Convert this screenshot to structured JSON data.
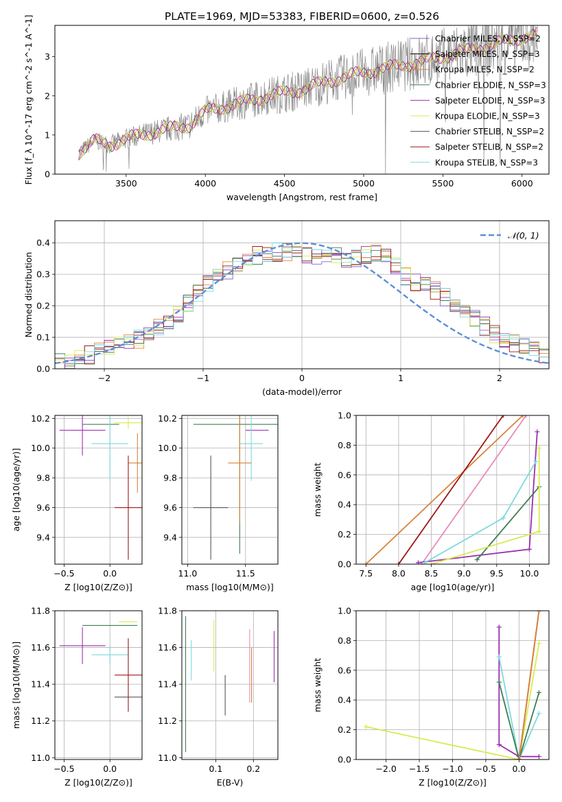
{
  "title": "PLATE=1969, MJD=53383, FIBERID=0600, z=0.526",
  "colors": {
    "chabrier_miles": "#8c62c9",
    "salpeter_miles": "#000000",
    "kroupa_miles": "#e8823a",
    "chabrier_elodie": "#3d7d52",
    "salpeter_elodie": "#9b2fb0",
    "kroupa_elodie": "#d9ea4c",
    "chabrier_stelib": "#555555",
    "salpeter_stelib": "#a01515",
    "kroupa_stelib": "#7dd9e0",
    "data": "#888888",
    "gauss": "#5a8fd6",
    "pink": "#e88ab8",
    "orange": "#d8843a"
  },
  "chart_data": [
    {
      "id": "spectrum",
      "type": "line",
      "xlabel": "wavelength [Angstrom, rest frame]",
      "ylabel": "Flux [f_λ 10^-17 erg cm^-2 s^-1 A^-1]",
      "xlim": [
        3050,
        6170
      ],
      "ylim": [
        0,
        3.8
      ],
      "xticks": [
        "3500",
        "4000",
        "4500",
        "5000",
        "5500",
        "6000"
      ],
      "yticks": [
        "0",
        "1",
        "2",
        "3"
      ],
      "grid": false,
      "legend_position": "right",
      "legend": [
        "Chabrier MILES, N_SSP=2",
        "Salpeter MILES, N_SSP=3",
        "Kroupa MILES, N_SSP=2",
        "Chabrier ELODIE, N_SSP=3",
        "Salpeter ELODIE, N_SSP=3",
        "Kroupa ELODIE, N_SSP=3",
        "Chabrier STELIB, N_SSP=2",
        "Salpeter STELIB, N_SSP=2",
        "Kroupa STELIB, N_SSP=3"
      ],
      "model_continuum": [
        [
          3200,
          0.55
        ],
        [
          3300,
          0.85
        ],
        [
          3400,
          0.75
        ],
        [
          3500,
          0.9
        ],
        [
          3700,
          1.1
        ],
        [
          3900,
          1.25
        ],
        [
          4000,
          1.6
        ],
        [
          4200,
          1.8
        ],
        [
          4400,
          2.0
        ],
        [
          4600,
          2.15
        ],
        [
          4800,
          2.4
        ],
        [
          5000,
          2.6
        ],
        [
          5200,
          2.75
        ],
        [
          5400,
          2.9
        ],
        [
          5600,
          3.1
        ],
        [
          5800,
          3.3
        ],
        [
          6000,
          3.5
        ],
        [
          6100,
          3.55
        ]
      ]
    },
    {
      "id": "residuals",
      "type": "line",
      "xlabel": "(data-model)/error",
      "ylabel": "Normed distribution",
      "xlim": [
        -2.5,
        2.5
      ],
      "ylim": [
        0,
        0.47
      ],
      "xticks": [
        "−2",
        "−1",
        "0",
        "1",
        "2"
      ],
      "yticks": [
        "0.0",
        "0.1",
        "0.2",
        "0.3",
        "0.4"
      ],
      "grid": true,
      "legend_position": "top-right",
      "legend": [
        "𝒩(0, 1)"
      ],
      "histogram_envelope": [
        [
          -2.5,
          0.02
        ],
        [
          -2.2,
          0.04
        ],
        [
          -1.9,
          0.07
        ],
        [
          -1.6,
          0.1
        ],
        [
          -1.3,
          0.16
        ],
        [
          -1.0,
          0.26
        ],
        [
          -0.7,
          0.32
        ],
        [
          -0.4,
          0.37
        ],
        [
          -0.1,
          0.37
        ],
        [
          0.2,
          0.36
        ],
        [
          0.5,
          0.35
        ],
        [
          0.8,
          0.37
        ],
        [
          1.1,
          0.28
        ],
        [
          1.4,
          0.24
        ],
        [
          1.7,
          0.17
        ],
        [
          2.0,
          0.1
        ],
        [
          2.3,
          0.06
        ],
        [
          2.5,
          0.04
        ]
      ]
    },
    {
      "id": "age_vs_Z",
      "type": "scatter",
      "xlabel": "Z [log10(Z/Z⊙)]",
      "ylabel": "age  [log10(age/yr)]",
      "xlim": [
        -0.6,
        0.35
      ],
      "ylim": [
        9.22,
        10.22
      ],
      "xticks": [
        "−0.5",
        "0.0"
      ],
      "yticks": [
        "9.4",
        "9.6",
        "9.8",
        "10.0",
        "10.2"
      ],
      "grid": true,
      "points": [
        {
          "x": -0.3,
          "y": 10.12,
          "xerr": 0.25,
          "yerr": 0.17,
          "color": "salpeter_elodie"
        },
        {
          "x": -0.1,
          "y": 10.16,
          "xerr": 0.2,
          "yerr": 0.0,
          "color": "chabrier_elodie"
        },
        {
          "x": 0.2,
          "y": 10.17,
          "xerr": 0.15,
          "yerr": 0.04,
          "color": "kroupa_elodie"
        },
        {
          "x": 0.0,
          "y": 10.03,
          "xerr": 0.2,
          "yerr": 0.25,
          "color": "kroupa_stelib"
        },
        {
          "x": 0.3,
          "y": 9.9,
          "xerr": 0.1,
          "yerr": 0.2,
          "color": "orange"
        },
        {
          "x": 0.2,
          "y": 9.6,
          "xerr": 0.15,
          "yerr": 0.35,
          "color": "salpeter_stelib"
        }
      ]
    },
    {
      "id": "age_vs_mass",
      "type": "scatter",
      "xlabel": "mass [log10(M/M⊙)]",
      "ylabel": "",
      "xlim": [
        10.95,
        11.78
      ],
      "ylim": [
        9.22,
        10.22
      ],
      "xticks": [
        "11.0",
        "11.5"
      ],
      "yticks": [
        "9.4",
        "9.6",
        "9.8",
        "10.0",
        "10.2"
      ],
      "grid": true,
      "points": [
        {
          "x": 11.45,
          "y": 10.16,
          "xerr": 0.4,
          "yerr": 0.87,
          "color": "chabrier_elodie"
        },
        {
          "x": 11.6,
          "y": 10.12,
          "xerr": 0.1,
          "yerr": 0.0,
          "color": "salpeter_elodie"
        },
        {
          "x": 11.55,
          "y": 10.03,
          "xerr": 0.1,
          "yerr": 0.25,
          "color": "kroupa_stelib"
        },
        {
          "x": 11.45,
          "y": 9.9,
          "xerr": 0.1,
          "yerr": 0.4,
          "color": "orange"
        },
        {
          "x": 11.2,
          "y": 9.6,
          "xerr": 0.15,
          "yerr": 0.35,
          "color": "chabrier_stelib"
        }
      ]
    },
    {
      "id": "weight_vs_age",
      "type": "line",
      "xlabel": "age  [log10(age/yr)]",
      "ylabel": "mass weight",
      "xlim": [
        7.35,
        10.3
      ],
      "ylim": [
        0,
        1.0
      ],
      "xticks": [
        "7.5",
        "8.0",
        "8.5",
        "9.0",
        "9.5",
        "10.0"
      ],
      "yticks": [
        "0.0",
        "0.2",
        "0.4",
        "0.6",
        "0.8",
        "1.0"
      ],
      "grid": true,
      "series": [
        {
          "color": "orange",
          "x": [
            7.5,
            9.9
          ],
          "y": [
            0.0,
            1.0
          ]
        },
        {
          "color": "salpeter_stelib",
          "x": [
            8.0,
            9.6
          ],
          "y": [
            0.0,
            1.0
          ]
        },
        {
          "color": "pink",
          "x": [
            8.35,
            9.95
          ],
          "y": [
            0.0,
            1.0
          ]
        },
        {
          "color": "salpeter_elodie",
          "x": [
            8.3,
            10.0,
            10.12
          ],
          "y": [
            0.01,
            0.1,
            0.89
          ]
        },
        {
          "color": "kroupa_stelib",
          "x": [
            8.4,
            9.6,
            10.1
          ],
          "y": [
            0.01,
            0.31,
            0.69
          ]
        },
        {
          "color": "chabrier_elodie",
          "x": [
            9.2,
            10.15
          ],
          "y": [
            0.03,
            0.52
          ]
        },
        {
          "color": "kroupa_elodie",
          "x": [
            8.5,
            10.15,
            10.15
          ],
          "y": [
            0.0,
            0.22,
            0.78
          ]
        }
      ]
    },
    {
      "id": "mass_vs_Z",
      "type": "scatter",
      "xlabel": "Z [log10(Z/Z⊙)]",
      "ylabel": "mass [log10(M/M⊙)]",
      "xlim": [
        -0.6,
        0.35
      ],
      "ylim": [
        10.99,
        11.8
      ],
      "xticks": [
        "−0.5",
        "0.0"
      ],
      "yticks": [
        "11.0",
        "11.2",
        "11.4",
        "11.6",
        "11.8"
      ],
      "grid": true,
      "points": [
        {
          "x": -0.3,
          "y": 11.61,
          "xerr": 0.25,
          "yerr": 0.1,
          "color": "salpeter_elodie"
        },
        {
          "x": 0.0,
          "y": 11.72,
          "xerr": 0.3,
          "yerr": 0.0,
          "color": "chabrier_elodie"
        },
        {
          "x": 0.2,
          "y": 11.74,
          "xerr": 0.1,
          "yerr": 0.0,
          "color": "kroupa_elodie"
        },
        {
          "x": 0.0,
          "y": 11.56,
          "xerr": 0.2,
          "yerr": 0.05,
          "color": "kroupa_stelib"
        },
        {
          "x": 0.2,
          "y": 11.45,
          "xerr": 0.15,
          "yerr": 0.2,
          "color": "salpeter_stelib"
        },
        {
          "x": 0.2,
          "y": 11.33,
          "xerr": 0.15,
          "yerr": 0.0,
          "color": "chabrier_stelib"
        }
      ]
    },
    {
      "id": "mass_vs_ebv",
      "type": "scatter",
      "xlabel": "E(B-V)",
      "ylabel": "",
      "xlim": [
        0.01,
        0.265
      ],
      "ylim": [
        10.99,
        11.8
      ],
      "xticks": [
        "0.1",
        "0.2"
      ],
      "yticks": [
        "11.0",
        "11.2",
        "11.4",
        "11.6",
        "11.8"
      ],
      "grid": true,
      "points": [
        {
          "x": 0.02,
          "y": 11.4,
          "xerr": 0,
          "yerr": 0.37,
          "color": "chabrier_elodie"
        },
        {
          "x": 0.035,
          "y": 11.53,
          "xerr": 0,
          "yerr": 0.11,
          "color": "kroupa_stelib"
        },
        {
          "x": 0.095,
          "y": 11.61,
          "xerr": 0,
          "yerr": 0.14,
          "color": "kroupa_elodie"
        },
        {
          "x": 0.125,
          "y": 11.34,
          "xerr": 0,
          "yerr": 0.11,
          "color": "chabrier_stelib"
        },
        {
          "x": 0.19,
          "y": 11.5,
          "xerr": 0,
          "yerr": 0.2,
          "color": "pink"
        },
        {
          "x": 0.195,
          "y": 11.45,
          "xerr": 0,
          "yerr": 0.15,
          "color": "orange"
        },
        {
          "x": 0.255,
          "y": 11.55,
          "xerr": 0,
          "yerr": 0.14,
          "color": "salpeter_elodie"
        }
      ]
    },
    {
      "id": "weight_vs_Z",
      "type": "line",
      "xlabel": "Z [log10(Z/Z⊙)]",
      "ylabel": "mass weight",
      "xlim": [
        -2.45,
        0.45
      ],
      "ylim": [
        0,
        1.0
      ],
      "xticks": [
        "−2.0",
        "−1.5",
        "−1.0",
        "−0.5",
        "0.0"
      ],
      "yticks": [
        "0.0",
        "0.2",
        "0.4",
        "0.6",
        "0.8",
        "1.0"
      ],
      "grid": true,
      "series": [
        {
          "color": "kroupa_elodie",
          "x": [
            -2.3,
            0.0,
            0.3
          ],
          "y": [
            0.22,
            0.0,
            0.78
          ]
        },
        {
          "color": "salpeter_elodie",
          "x": [
            -0.3,
            -0.3,
            0.0,
            0.3
          ],
          "y": [
            0.89,
            0.1,
            0.02,
            0.02
          ]
        },
        {
          "color": "kroupa_stelib",
          "x": [
            -0.3,
            0.0,
            0.3
          ],
          "y": [
            0.69,
            0.0,
            0.31
          ]
        },
        {
          "color": "chabrier_elodie",
          "x": [
            -0.3,
            0.0,
            0.3
          ],
          "y": [
            0.52,
            0.0,
            0.45
          ]
        },
        {
          "color": "salpeter_stelib",
          "x": [
            0.0,
            0.3
          ],
          "y": [
            0.0,
            1.0
          ]
        },
        {
          "color": "orange",
          "x": [
            0.0,
            0.3
          ],
          "y": [
            0.0,
            1.0
          ]
        }
      ]
    }
  ]
}
